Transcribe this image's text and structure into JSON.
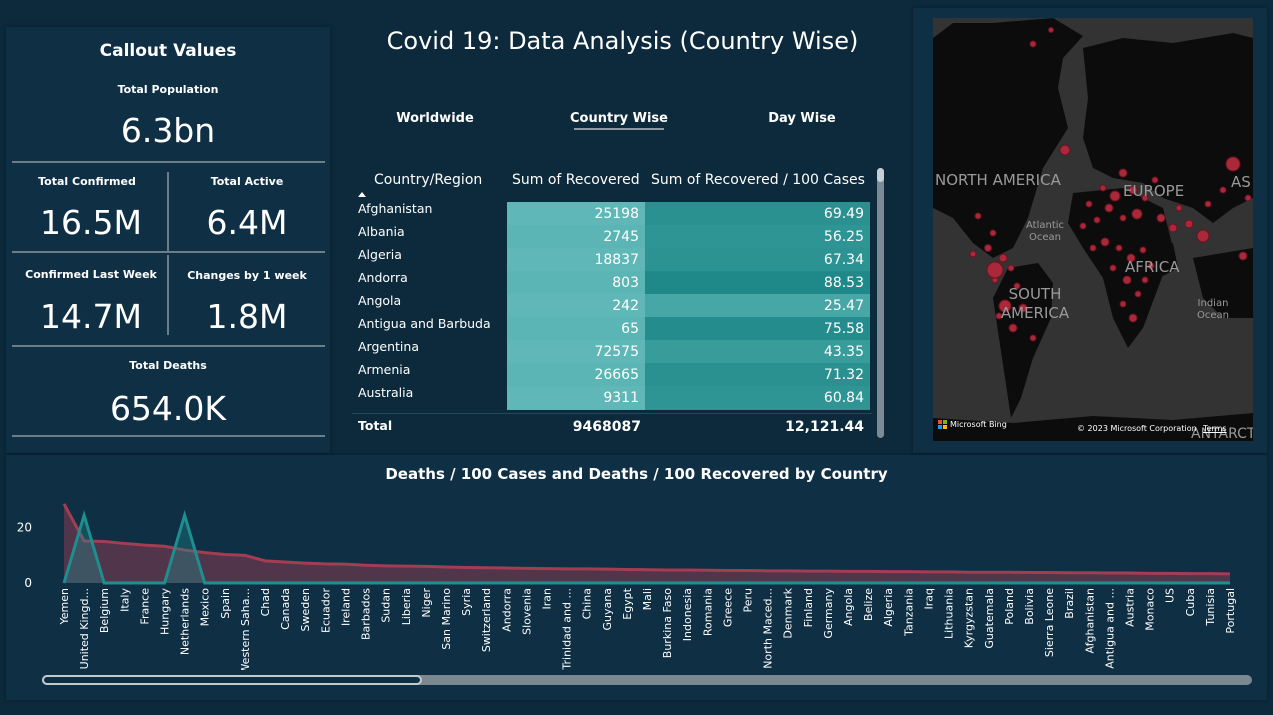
{
  "page": {
    "title": "Covid 19: Data Analysis (Country Wise)",
    "nav": [
      "Worldwide",
      "Country Wise",
      "Day Wise"
    ],
    "active_tab": "Country Wise"
  },
  "callout": {
    "title": "Callout Values",
    "total_population_label": "Total Population",
    "total_population": "6.3bn",
    "total_confirmed_label": "Total Confirmed",
    "total_confirmed": "16.5M",
    "total_active_label": "Total Active",
    "total_active": "6.4M",
    "confirmed_last_week_label": "Confirmed Last Week",
    "confirmed_last_week": "14.7M",
    "changes_label": "Changes by 1 week",
    "changes": "1.8M",
    "total_deaths_label": "Total Deaths",
    "total_deaths": "654.0K"
  },
  "table": {
    "headers": [
      "Country/Region",
      "Sum of Recovered",
      "Sum of Recovered / 100 Cases"
    ],
    "rows": [
      {
        "country": "Afghanistan",
        "recovered": "25198",
        "per100": "69.49"
      },
      {
        "country": "Albania",
        "recovered": "2745",
        "per100": "56.25"
      },
      {
        "country": "Algeria",
        "recovered": "18837",
        "per100": "67.34"
      },
      {
        "country": "Andorra",
        "recovered": "803",
        "per100": "88.53"
      },
      {
        "country": "Angola",
        "recovered": "242",
        "per100": "25.47"
      },
      {
        "country": "Antigua and Barbuda",
        "recovered": "65",
        "per100": "75.58"
      },
      {
        "country": "Argentina",
        "recovered": "72575",
        "per100": "43.35"
      },
      {
        "country": "Armenia",
        "recovered": "26665",
        "per100": "71.32"
      },
      {
        "country": "Australia",
        "recovered": "9311",
        "per100": "60.84"
      }
    ],
    "total_label": "Total",
    "total_recovered": "9468087",
    "total_per100": "12,121.44"
  },
  "map": {
    "labels": [
      "NORTH AMERICA",
      "EUROPE",
      "AS",
      "Atlantic Ocean",
      "AFRICA",
      "SOUTH AMERICA",
      "Indian Ocean",
      "ANTARCTICA"
    ],
    "bing_label": "Microsoft Bing",
    "copyright": "© 2023 Microsoft Corporation",
    "terms": "Terms"
  },
  "chart_data": {
    "type": "area",
    "title": "Deaths / 100 Cases and Deaths / 100 Recovered by Country",
    "ylim": [
      0,
      30
    ],
    "yticks": [
      0,
      20
    ],
    "categories": [
      "Yemen",
      "United Kingd...",
      "Belgium",
      "Italy",
      "France",
      "Hungary",
      "Netherlands",
      "Mexico",
      "Spain",
      "Western Saha...",
      "Chad",
      "Canada",
      "Sweden",
      "Ecuador",
      "Ireland",
      "Barbados",
      "Sudan",
      "Liberia",
      "Niger",
      "San Marino",
      "Syria",
      "Switzerland",
      "Andorra",
      "Slovenia",
      "Iran",
      "Trinidad and ...",
      "China",
      "Guyana",
      "Egypt",
      "Mali",
      "Burkina Faso",
      "Indonesia",
      "Romania",
      "Greece",
      "Peru",
      "North Maced...",
      "Denmark",
      "Finland",
      "Germany",
      "Angola",
      "Belize",
      "Algeria",
      "Tanzania",
      "Iraq",
      "Lithuania",
      "Kyrgyzstan",
      "Guatemala",
      "Poland",
      "Bolivia",
      "Sierra Leone",
      "Brazil",
      "Afghanistan",
      "Antigua and ...",
      "Austria",
      "Monaco",
      "US",
      "Cuba",
      "Tunisia",
      "Portugal"
    ],
    "series": [
      {
        "name": "Deaths / 100 Cases",
        "color": "#a33d53",
        "values": [
          28.6,
          15.2,
          15.0,
          14.3,
          13.7,
          13.3,
          11.9,
          11.0,
          10.3,
          10.0,
          8.0,
          7.6,
          7.2,
          6.9,
          6.8,
          6.4,
          6.2,
          6.1,
          6.0,
          5.8,
          5.6,
          5.5,
          5.4,
          5.3,
          5.2,
          5.1,
          5.1,
          5.0,
          4.9,
          4.8,
          4.7,
          4.7,
          4.6,
          4.5,
          4.5,
          4.4,
          4.4,
          4.3,
          4.3,
          4.2,
          4.2,
          4.1,
          4.1,
          4.0,
          4.0,
          3.9,
          3.9,
          3.9,
          3.8,
          3.8,
          3.7,
          3.7,
          3.6,
          3.6,
          3.5,
          3.5,
          3.4,
          3.4,
          3.3
        ]
      },
      {
        "name": "Deaths / 100 Recovered",
        "color": "#1e8e8e",
        "values": [
          0,
          24.5,
          0,
          0,
          0,
          0,
          24.5,
          0,
          0,
          0,
          0,
          0,
          0,
          0,
          0,
          0,
          0,
          0,
          0,
          0,
          0,
          0,
          0,
          0,
          0,
          0,
          0,
          0,
          0,
          0,
          0,
          0,
          0,
          0,
          0,
          0,
          0,
          0,
          0,
          0,
          0,
          0,
          0,
          0,
          0,
          0,
          0,
          0,
          0,
          0,
          0,
          0,
          0,
          0,
          0,
          0,
          0,
          0,
          0
        ]
      }
    ]
  }
}
